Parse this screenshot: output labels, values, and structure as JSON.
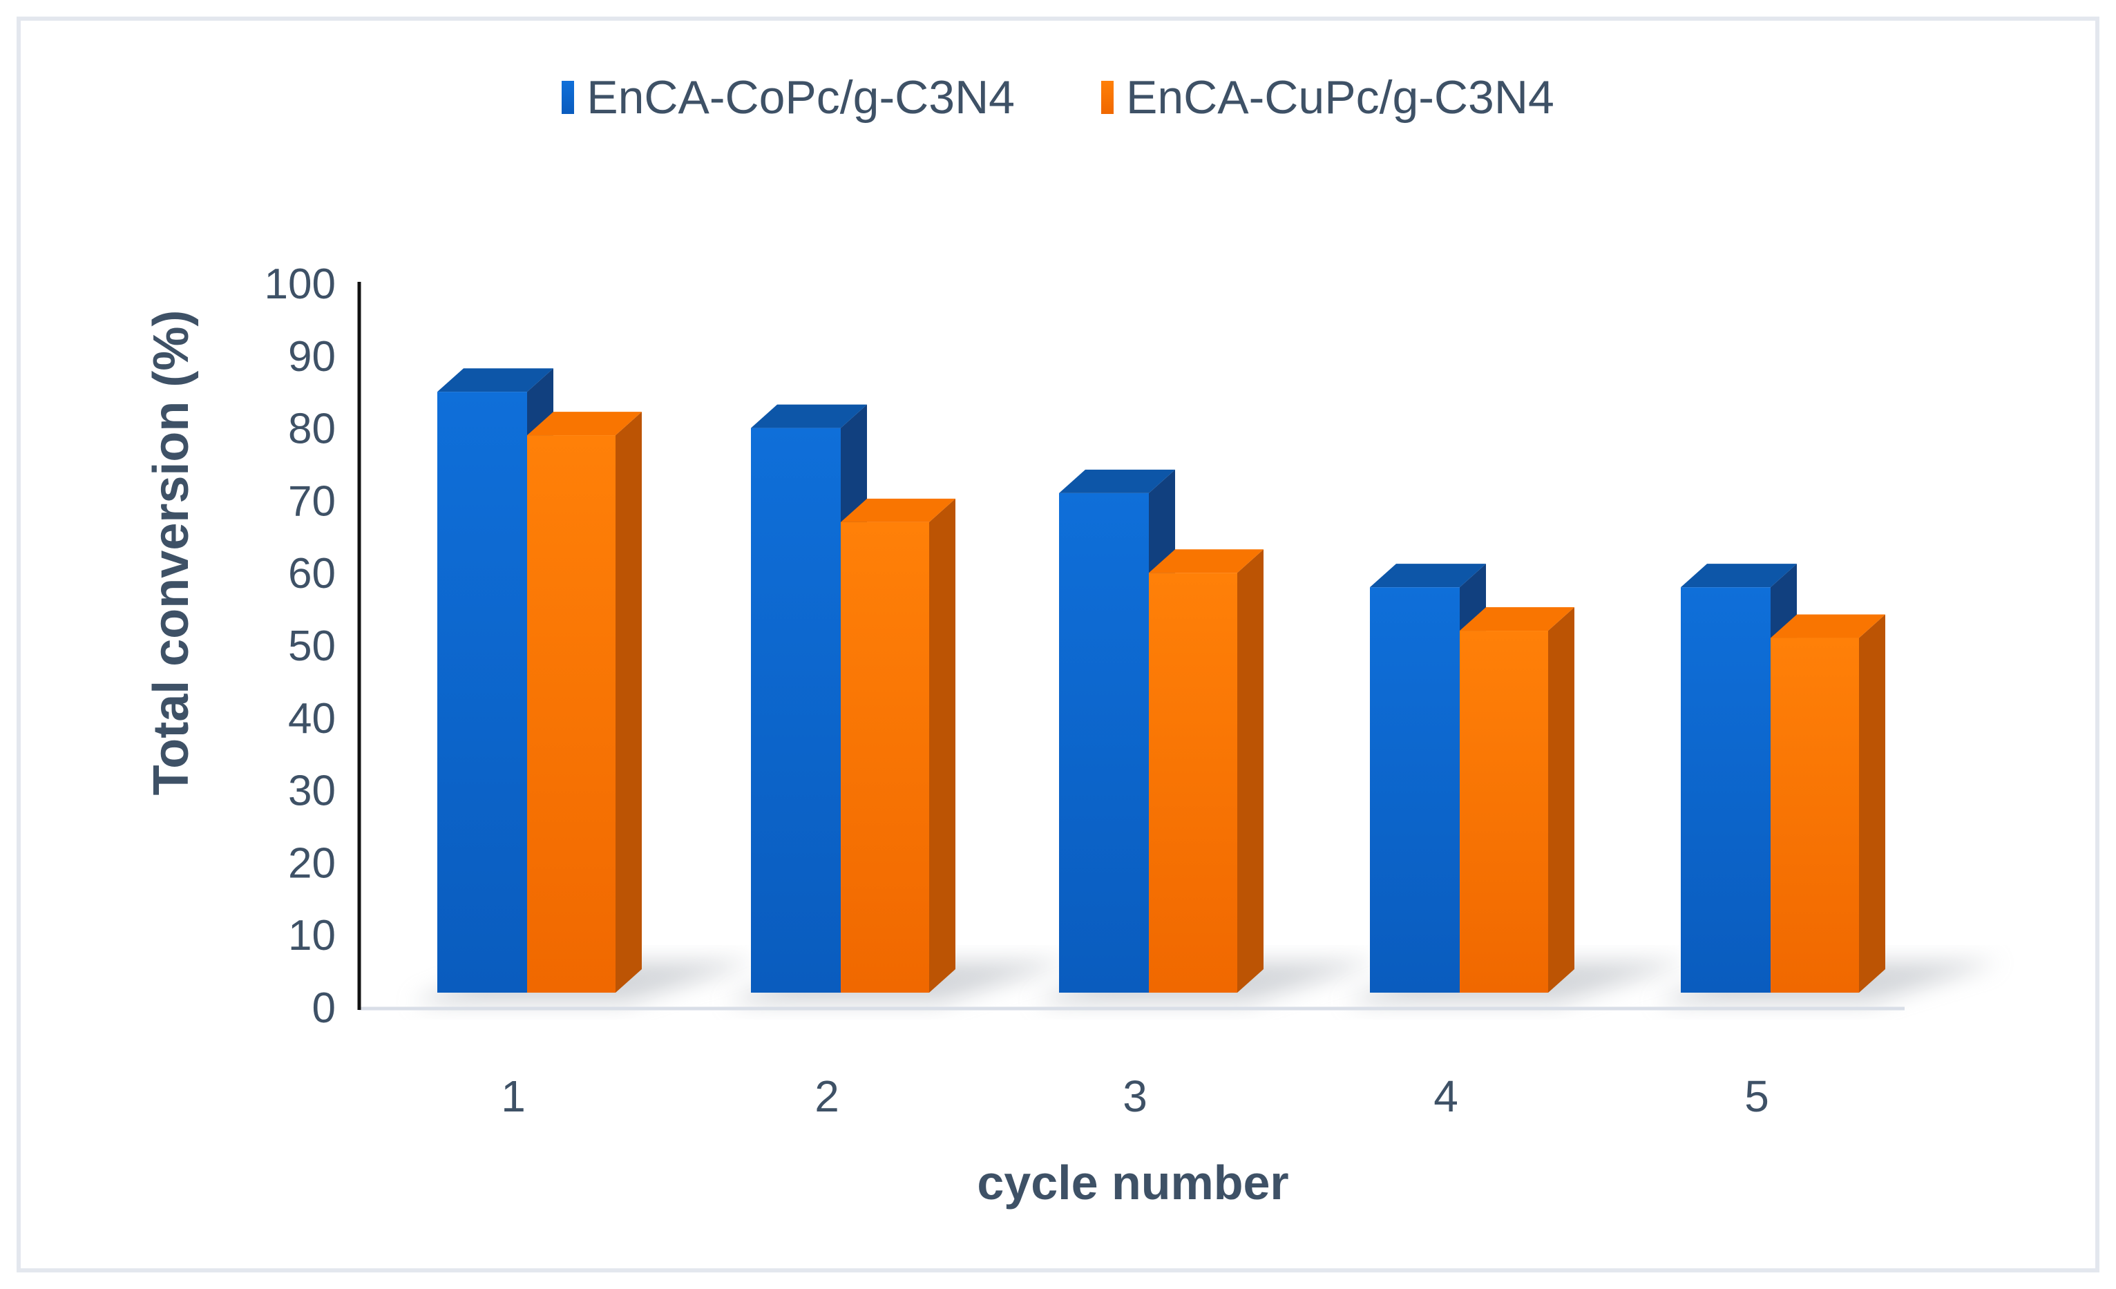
{
  "chart_data": {
    "type": "bar",
    "style": "3d-clustered-column",
    "title": "",
    "categories": [
      "1",
      "2",
      "3",
      "4",
      "5"
    ],
    "series": [
      {
        "name": "EnCA-CoPc/g-C3N4",
        "values": [
          85,
          80,
          71,
          58,
          58
        ],
        "colors": {
          "front": "#0F6FD9",
          "front_dark": "#0A5CBE",
          "top": "#0D56A8",
          "side": "#11407F"
        }
      },
      {
        "name": "EnCA-CuPc/g-C3N4",
        "values": [
          79,
          67,
          60,
          52,
          51
        ],
        "colors": {
          "front": "#FF8008",
          "front_dark": "#F06800",
          "top": "#F97501",
          "side": "#BC5404"
        }
      }
    ],
    "xlabel": "cycle number",
    "ylabel": "Total conversion (%)",
    "ylim": [
      0,
      100
    ],
    "yticks": [
      0,
      10,
      20,
      30,
      40,
      50,
      60,
      70,
      80,
      90,
      100
    ],
    "grid": false,
    "legend_position": "top"
  },
  "styling": {
    "text_color": "#3E5166",
    "axis_line_color": "#111111",
    "baseline_color": "#D9DEE7",
    "frame_border_color": "#E3E7EE",
    "shadow_color": "#A8ADB5",
    "background_color": "#FFFFFF"
  }
}
